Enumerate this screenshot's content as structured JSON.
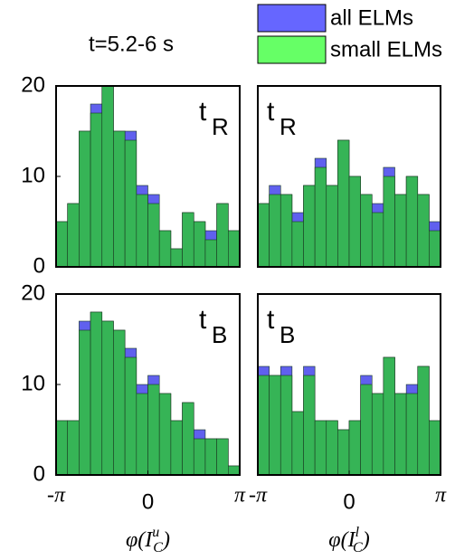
{
  "title": "t=5.2-6 s",
  "legend": [
    {
      "name": "all ELMs",
      "color": "#6666ff"
    },
    {
      "name": "small ELMs",
      "color": "#66ff66"
    }
  ],
  "chart_data": [
    {
      "type": "histogram",
      "label": "t",
      "label_sub": "R",
      "bins": [
        -3.1416,
        -2.7489,
        -2.3562,
        -1.9635,
        -1.5708,
        -1.1781,
        -0.7854,
        -0.3927,
        0,
        0.3927,
        0.7854,
        1.1781,
        1.5708,
        1.9635,
        2.3562,
        2.7489,
        3.1416
      ],
      "series": [
        {
          "color": "#6060ee",
          "values": [
            5,
            7,
            15,
            18,
            20,
            15,
            15,
            9,
            8,
            4,
            2,
            6,
            5,
            4,
            7,
            4
          ]
        },
        {
          "color": "#36b456",
          "values": [
            5,
            7,
            15,
            17,
            20,
            15,
            14,
            8,
            7,
            4,
            2,
            6,
            5,
            3,
            7,
            4
          ]
        }
      ],
      "xlim": [
        -3.1416,
        3.1416
      ],
      "ylim": [
        0,
        20
      ],
      "yticks": [
        0,
        10,
        20
      ]
    },
    {
      "type": "histogram",
      "label": "t",
      "label_sub": "R",
      "bins": [
        -3.1416,
        -2.7489,
        -2.3562,
        -1.9635,
        -1.5708,
        -1.1781,
        -0.7854,
        -0.3927,
        0,
        0.3927,
        0.7854,
        1.1781,
        1.5708,
        1.9635,
        2.3562,
        2.7489,
        3.1416
      ],
      "series": [
        {
          "color": "#6060ee",
          "values": [
            7,
            9,
            8,
            6,
            9,
            12,
            9,
            14,
            10,
            8,
            7,
            11,
            8,
            10,
            8,
            5
          ]
        },
        {
          "color": "#36b456",
          "values": [
            7,
            8,
            8,
            5,
            9,
            11,
            9,
            14,
            10,
            8,
            6,
            10,
            8,
            10,
            8,
            4
          ]
        }
      ],
      "xlim": [
        -3.1416,
        3.1416
      ],
      "ylim": [
        0,
        20
      ]
    },
    {
      "type": "histogram",
      "label": "t",
      "label_sub": "B",
      "bins": [
        -3.1416,
        -2.7489,
        -2.3562,
        -1.9635,
        -1.5708,
        -1.1781,
        -0.7854,
        -0.3927,
        0,
        0.3927,
        0.7854,
        1.1781,
        1.5708,
        1.9635,
        2.3562,
        2.7489,
        3.1416
      ],
      "series": [
        {
          "color": "#6060ee",
          "values": [
            6,
            6,
            17,
            18,
            17,
            16,
            14,
            10,
            11,
            9,
            6,
            8,
            5,
            4,
            4,
            1
          ]
        },
        {
          "color": "#36b456",
          "values": [
            6,
            6,
            16,
            18,
            17,
            16,
            13,
            9,
            10,
            9,
            6,
            8,
            4,
            4,
            4,
            1
          ]
        }
      ],
      "xlim": [
        -3.1416,
        3.1416
      ],
      "ylim": [
        0,
        20
      ],
      "yticks": [
        0,
        10,
        20
      ],
      "xticks": [
        {
          "value": -3.1416,
          "label": "-π"
        },
        0,
        {
          "value": 3.1416,
          "label": "π"
        }
      ],
      "xlabel": {
        "open": "φ(I",
        "sub": "C",
        "sup": "u",
        "close": ")"
      }
    },
    {
      "type": "histogram",
      "label": "t",
      "label_sub": "B",
      "bins": [
        -3.1416,
        -2.7489,
        -2.3562,
        -1.9635,
        -1.5708,
        -1.1781,
        -0.7854,
        -0.3927,
        0,
        0.3927,
        0.7854,
        1.1781,
        1.5708,
        1.9635,
        2.3562,
        2.7489,
        3.1416
      ],
      "series": [
        {
          "color": "#6060ee",
          "values": [
            12,
            11,
            12,
            7,
            12,
            6,
            6,
            5,
            6,
            11,
            9,
            13,
            9,
            10,
            12,
            6
          ]
        },
        {
          "color": "#36b456",
          "values": [
            11,
            11,
            11,
            7,
            11,
            6,
            6,
            5,
            6,
            10,
            9,
            13,
            9,
            9,
            12,
            6
          ]
        }
      ],
      "xlim": [
        -3.1416,
        3.1416
      ],
      "ylim": [
        0,
        20
      ],
      "xticks": [
        {
          "value": -3.1416,
          "label": "-π"
        },
        0,
        {
          "value": 3.1416,
          "label": "π"
        }
      ],
      "xlabel": {
        "open": "φ(I",
        "sub": "C",
        "sup": "l",
        "close": ")"
      }
    }
  ]
}
